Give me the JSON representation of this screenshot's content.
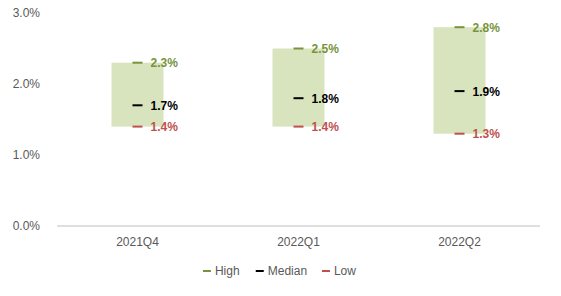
{
  "chart_data": {
    "type": "range",
    "categories": [
      "2021Q4",
      "2022Q1",
      "2022Q2"
    ],
    "color": "#d7e4bd",
    "series": [
      {
        "name": "High",
        "color": "#77933c",
        "values": [
          2.3,
          2.5,
          2.8
        ],
        "value_labels": [
          "2.3%",
          "2.5%",
          "2.8%"
        ]
      },
      {
        "name": "Median",
        "color": "#000000",
        "values": [
          1.7,
          1.8,
          1.9
        ],
        "value_labels": [
          "1.7%",
          "1.8%",
          "1.9%"
        ]
      },
      {
        "name": "Low",
        "color": "#c0504d",
        "values": [
          1.4,
          1.4,
          1.3
        ],
        "value_labels": [
          "1.4%",
          "1.4%",
          "1.3%"
        ]
      }
    ],
    "ylim": [
      0,
      3
    ],
    "yticks": [
      {
        "value": 0,
        "label": "0.0%"
      },
      {
        "value": 1,
        "label": "1.0%"
      },
      {
        "value": 2,
        "label": "2.0%"
      },
      {
        "value": 3,
        "label": "3.0%"
      }
    ],
    "grid": false,
    "data_labels": true,
    "legend": "bottom"
  }
}
